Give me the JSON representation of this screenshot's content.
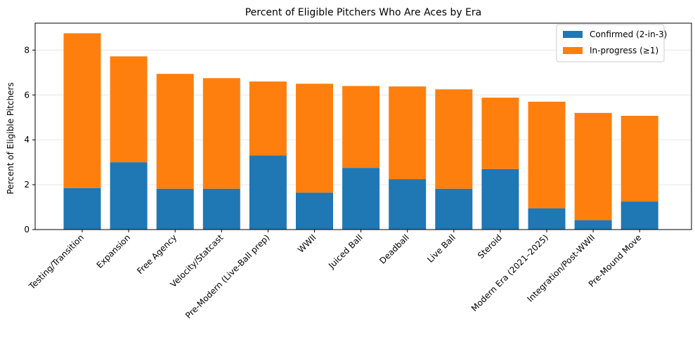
{
  "chart_data": {
    "type": "bar",
    "stacked": true,
    "title": "Percent of Eligible Pitchers Who Are Aces by Era",
    "xlabel": "",
    "ylabel": "Percent of Eligible Pitchers",
    "ylim": [
      0,
      9.2
    ],
    "yticks": [
      0,
      2,
      4,
      6,
      8
    ],
    "grid": "y",
    "legend_position": "top-right",
    "categories": [
      "Testing/Transition",
      "Expansion",
      "Free Agency",
      "Velocity/Statcast",
      "Pre-Modern (Live-Ball prep)",
      "WWII",
      "Juiced Ball",
      "Deadball",
      "Live Ball",
      "Steroid",
      "Modern Era (2021–2025)",
      "Integration/Post-WWII",
      "Pre-Mound Move"
    ],
    "series": [
      {
        "name": "Confirmed (2-in-3)",
        "color": "#1f77b4",
        "values": [
          1.85,
          3.0,
          1.82,
          1.82,
          3.3,
          1.65,
          2.75,
          2.25,
          1.82,
          2.7,
          0.95,
          0.42,
          1.25
        ]
      },
      {
        "name": "In-progress (≥1)",
        "color": "#ff7f0e",
        "values": [
          6.9,
          4.72,
          5.12,
          4.93,
          3.3,
          4.85,
          3.65,
          4.13,
          4.43,
          3.18,
          4.75,
          4.78,
          3.82
        ]
      }
    ]
  }
}
